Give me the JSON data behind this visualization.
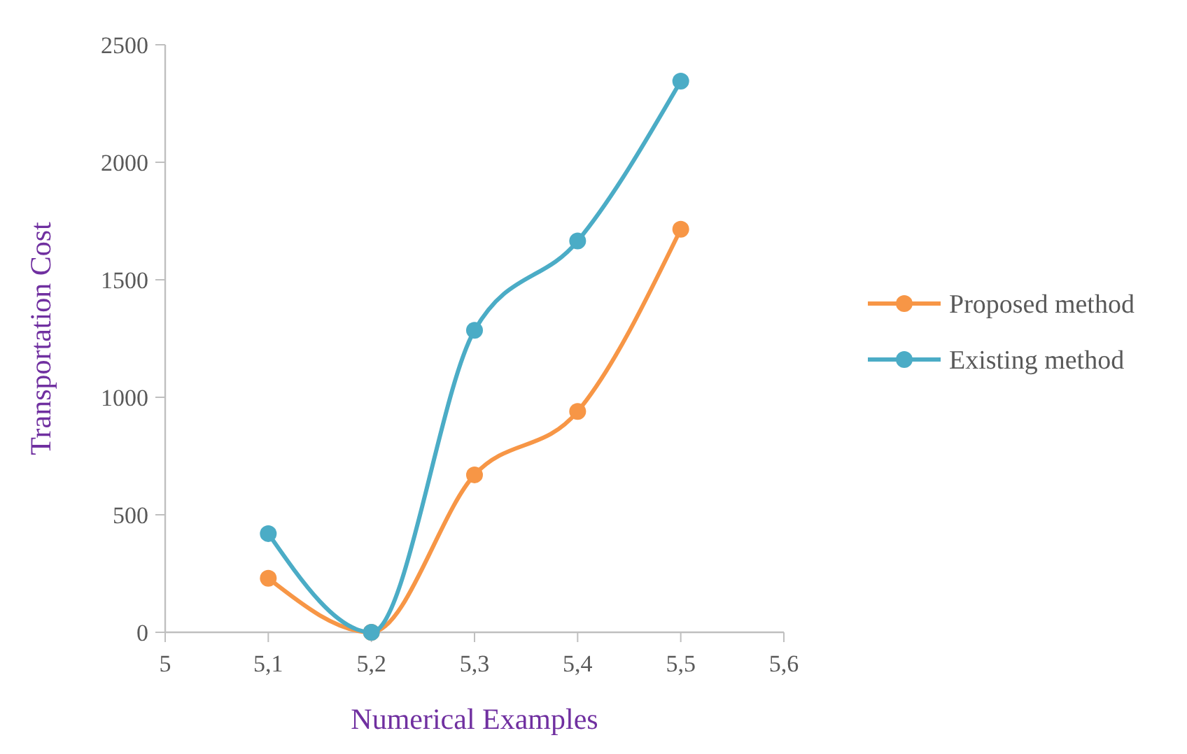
{
  "chart_data": {
    "type": "line",
    "xlabel": "Numerical Examples",
    "ylabel": "Transportation Cost",
    "x": [
      5.1,
      5.2,
      5.3,
      5.4,
      5.5
    ],
    "series": [
      {
        "name": "Proposed method",
        "color": "#f79646",
        "values": [
          230,
          0,
          670,
          940,
          1715
        ]
      },
      {
        "name": "Existing method",
        "color": "#4bacc6",
        "values": [
          420,
          0,
          1285,
          1665,
          2345
        ]
      }
    ],
    "xlim": [
      5,
      5.6
    ],
    "xticks": [
      5,
      {
        "value": 5.1,
        "label": "5,1"
      },
      {
        "value": 5.2,
        "label": "5,2"
      },
      {
        "value": 5.3,
        "label": "5,3"
      },
      {
        "value": 5.4,
        "label": "5,4"
      },
      {
        "value": 5.5,
        "label": "5,5"
      },
      {
        "value": 5.6,
        "label": "5,6"
      }
    ],
    "ylim": [
      0,
      2500
    ],
    "yticks": [
      0,
      500,
      1000,
      1500,
      2000,
      2500
    ],
    "grid": false,
    "legend": "right",
    "marker": "circle",
    "line_style": "solid"
  }
}
